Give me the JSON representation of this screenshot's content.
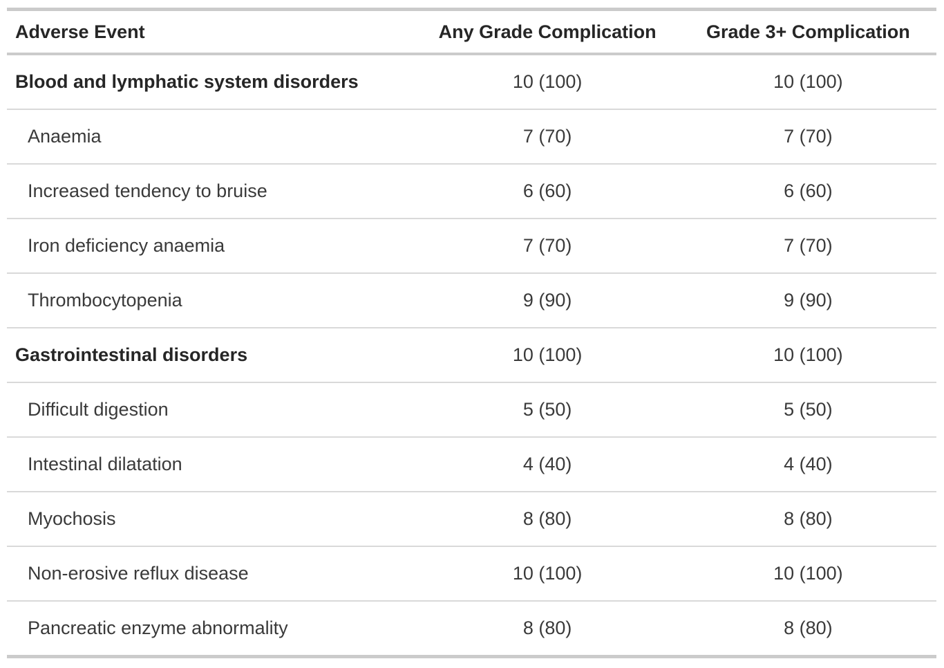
{
  "chart_data": {
    "type": "table",
    "columns": [
      "Adverse Event",
      "Any Grade Complication",
      "Grade 3+ Complication"
    ],
    "rows": [
      {
        "label": "Blood and lymphatic system disorders",
        "any_grade": "10 (100)",
        "grade3plus": "10 (100)",
        "is_category": true
      },
      {
        "label": "Anaemia",
        "any_grade": "7 (70)",
        "grade3plus": "7 (70)",
        "is_category": false
      },
      {
        "label": "Increased tendency to bruise",
        "any_grade": "6 (60)",
        "grade3plus": "6 (60)",
        "is_category": false
      },
      {
        "label": "Iron deficiency anaemia",
        "any_grade": "7 (70)",
        "grade3plus": "7 (70)",
        "is_category": false
      },
      {
        "label": "Thrombocytopenia",
        "any_grade": "9 (90)",
        "grade3plus": "9 (90)",
        "is_category": false
      },
      {
        "label": "Gastrointestinal disorders",
        "any_grade": "10 (100)",
        "grade3plus": "10 (100)",
        "is_category": true
      },
      {
        "label": "Difficult digestion",
        "any_grade": "5 (50)",
        "grade3plus": "5 (50)",
        "is_category": false
      },
      {
        "label": "Intestinal dilatation",
        "any_grade": "4 (40)",
        "grade3plus": "4 (40)",
        "is_category": false
      },
      {
        "label": "Myochosis",
        "any_grade": "8 (80)",
        "grade3plus": "8 (80)",
        "is_category": false
      },
      {
        "label": "Non-erosive reflux disease",
        "any_grade": "10 (100)",
        "grade3plus": "10 (100)",
        "is_category": false
      },
      {
        "label": "Pancreatic enzyme abnormality",
        "any_grade": "8 (80)",
        "grade3plus": "8 (80)",
        "is_category": false
      }
    ],
    "layout": {
      "grid": "horizontal-dividers-only",
      "value_format": "n (%)"
    },
    "colors": {
      "heading_text": "#262626",
      "body_text": "#3a3a3a",
      "outer_border": "#cbcbcb",
      "row_divider": "#d9d9d9",
      "background": "#ffffff"
    }
  }
}
